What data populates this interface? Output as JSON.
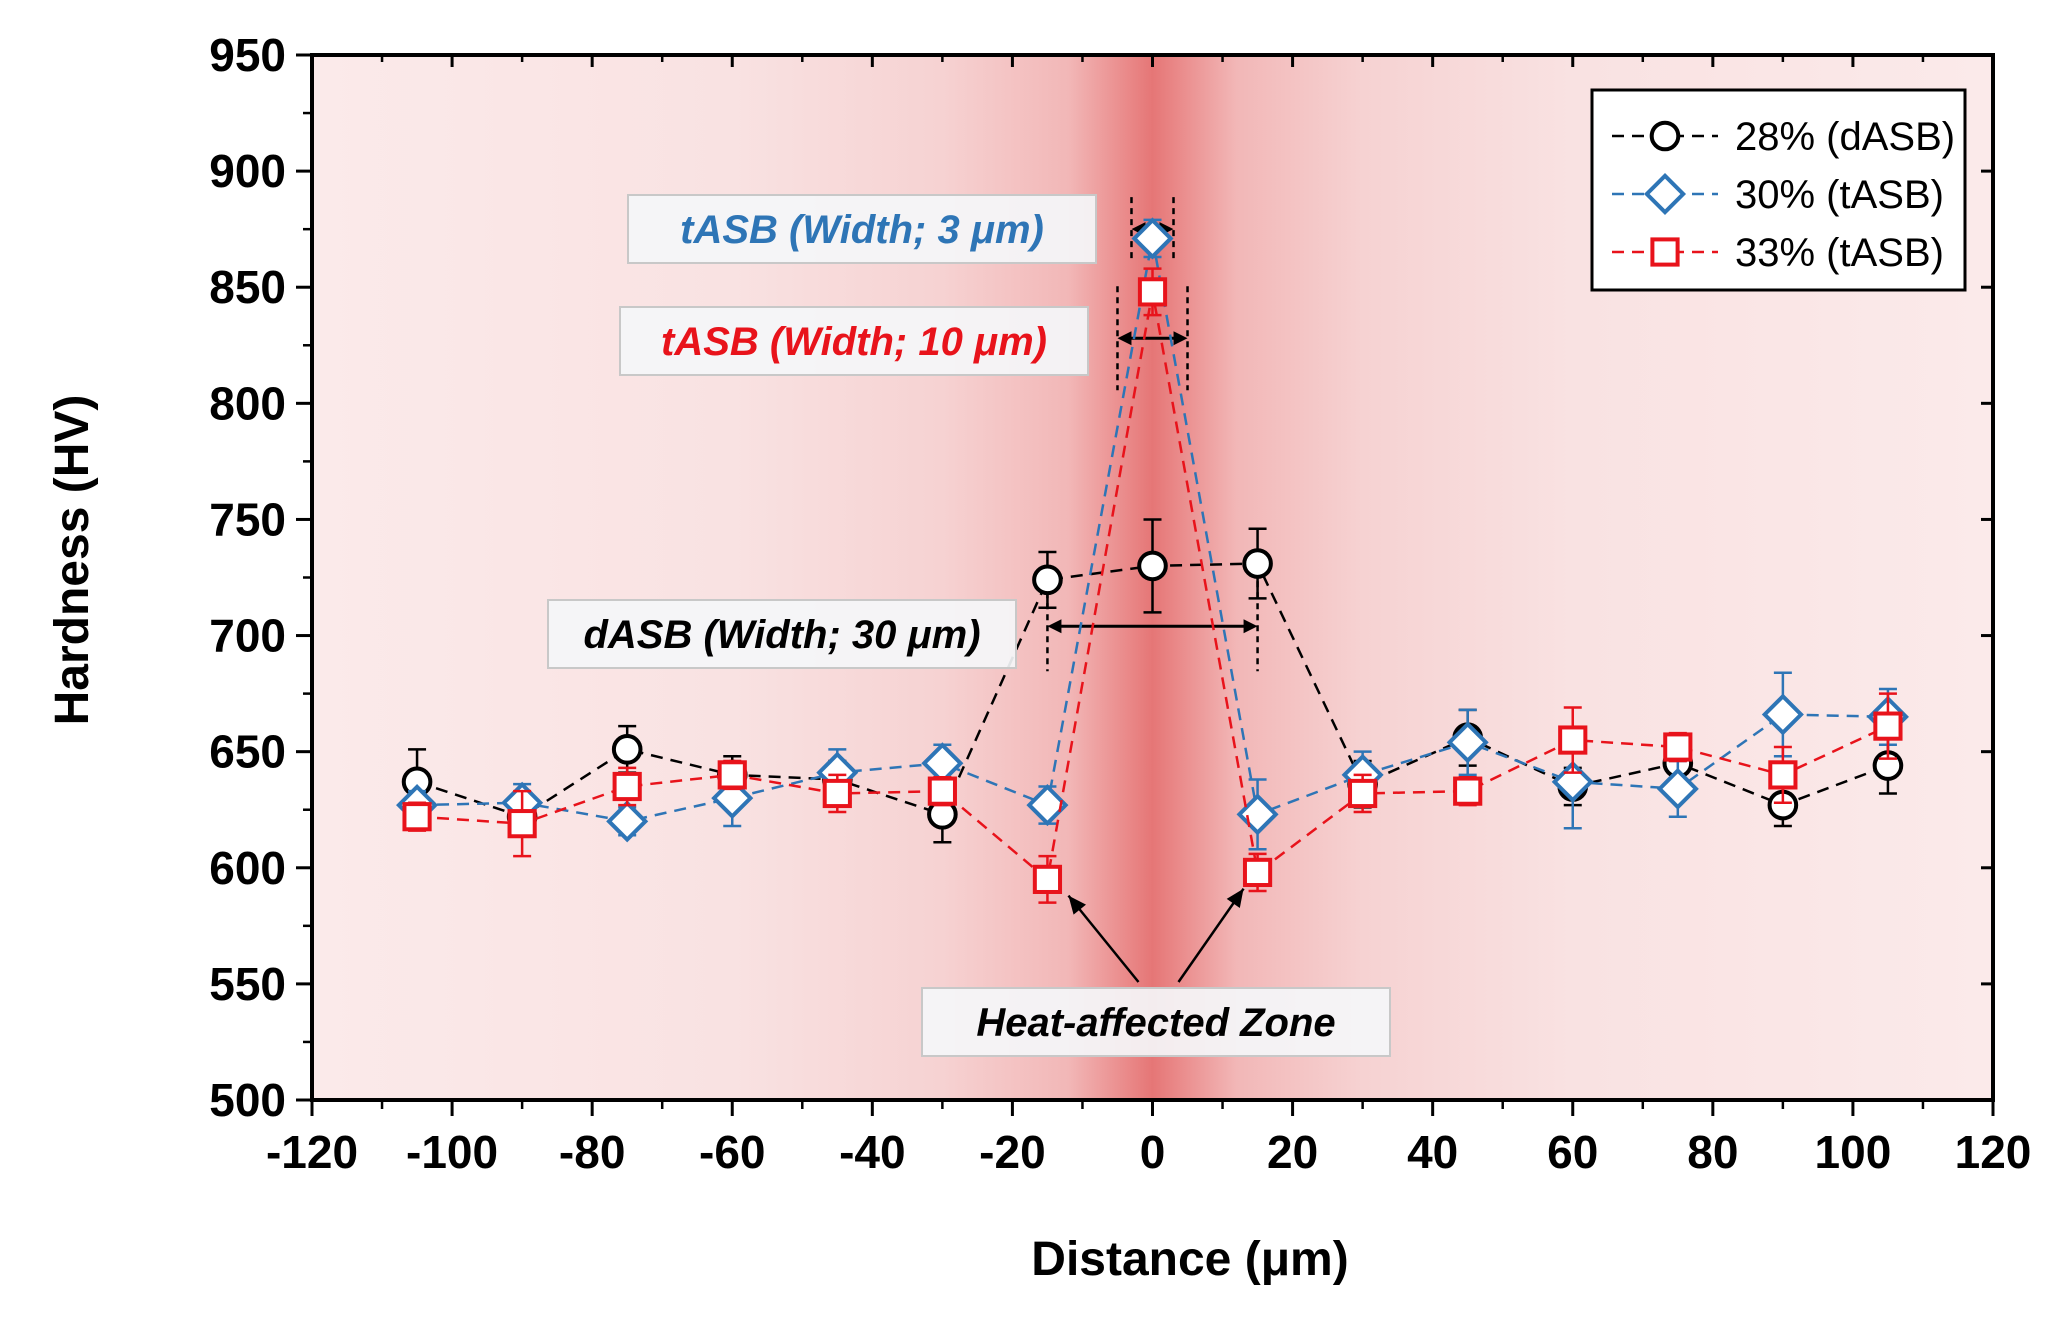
{
  "chart_data": {
    "type": "scatter",
    "title": "",
    "xlabel": "Distance (μm)",
    "ylabel": "Hardness (HV)",
    "xlim": [
      -120,
      120
    ],
    "ylim": [
      500,
      950
    ],
    "xticks": [
      -120,
      -100,
      -80,
      -60,
      -40,
      -20,
      0,
      20,
      40,
      60,
      80,
      100,
      120
    ],
    "yticks": [
      500,
      550,
      600,
      650,
      700,
      750,
      800,
      850,
      900,
      950
    ],
    "grid": false,
    "legend_position": "top-right",
    "background": "heat-affected zone shading, strongest at x = 0",
    "series": [
      {
        "name": "28% (dASB)",
        "marker": "circle",
        "color": "#000000",
        "x": [
          -105,
          -90,
          -75,
          -60,
          -45,
          -30,
          -15,
          0,
          15,
          30,
          45,
          60,
          75,
          90,
          105
        ],
        "y": [
          637,
          622,
          651,
          640,
          638,
          623,
          724,
          730,
          731,
          636,
          656,
          635,
          645,
          627,
          644
        ],
        "err": [
          14,
          8,
          10,
          8,
          8,
          12,
          12,
          20,
          15,
          10,
          12,
          8,
          8,
          9,
          12
        ]
      },
      {
        "name": "30% (tASB)",
        "marker": "diamond",
        "color": "#2e75b6",
        "x": [
          -105,
          -90,
          -75,
          -60,
          -45,
          -30,
          -15,
          0,
          15,
          30,
          45,
          60,
          75,
          90,
          105
        ],
        "y": [
          627,
          628,
          620,
          630,
          641,
          645,
          627,
          871,
          623,
          640,
          654,
          637,
          634,
          666,
          665
        ],
        "err": [
          6,
          8,
          6,
          12,
          10,
          8,
          8,
          8,
          15,
          10,
          14,
          20,
          12,
          18,
          12
        ]
      },
      {
        "name": "33% (tASB)",
        "marker": "square",
        "color": "#e8131b",
        "x": [
          -105,
          -90,
          -75,
          -60,
          -45,
          -30,
          -15,
          0,
          15,
          30,
          45,
          60,
          75,
          90,
          105
        ],
        "y": [
          622,
          619,
          635,
          640,
          632,
          633,
          595,
          848,
          598,
          632,
          633,
          655,
          652,
          640,
          661
        ],
        "err": [
          6,
          14,
          8,
          6,
          8,
          6,
          10,
          10,
          8,
          8,
          6,
          14,
          6,
          12,
          14
        ]
      }
    ],
    "annotations": [
      {
        "text": "tASB (Width; 3 μm)",
        "color": "#2e75b6",
        "x_start": -3,
        "x_end": 3,
        "y": 875
      },
      {
        "text": "tASB (Width; 10 μm)",
        "color": "#e8131b",
        "x_start": -5,
        "x_end": 5,
        "y": 828
      },
      {
        "text": "dASB (Width; 30 μm)",
        "color": "#000000",
        "x_start": -15,
        "x_end": 15,
        "y": 704
      },
      {
        "text": "Heat-affected Zone",
        "color": "#000000",
        "arrow_targets": [
          [
            -12,
            588
          ],
          [
            13,
            591
          ]
        ]
      }
    ]
  }
}
